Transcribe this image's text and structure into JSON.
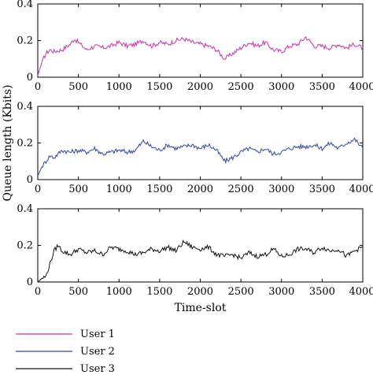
{
  "chart_data": [
    {
      "type": "line",
      "series": [
        {
          "name": "User 1",
          "color": "#cc33aa",
          "x": [
            0,
            50,
            100,
            150,
            200,
            300,
            400,
            450,
            500,
            600,
            700,
            800,
            900,
            1000,
            1100,
            1200,
            1300,
            1400,
            1500,
            1600,
            1700,
            1800,
            1900,
            2000,
            2100,
            2200,
            2300,
            2400,
            2500,
            2600,
            2700,
            2800,
            2900,
            3000,
            3100,
            3200,
            3300,
            3400,
            3500,
            3600,
            3700,
            3800,
            3900,
            4000
          ],
          "y": [
            0.01,
            0.08,
            0.13,
            0.15,
            0.14,
            0.15,
            0.18,
            0.21,
            0.19,
            0.15,
            0.17,
            0.16,
            0.17,
            0.19,
            0.17,
            0.18,
            0.2,
            0.17,
            0.19,
            0.18,
            0.2,
            0.21,
            0.19,
            0.18,
            0.17,
            0.15,
            0.1,
            0.13,
            0.16,
            0.19,
            0.17,
            0.19,
            0.15,
            0.14,
            0.17,
            0.18,
            0.22,
            0.17,
            0.17,
            0.16,
            0.18,
            0.16,
            0.18,
            0.16
          ]
        }
      ],
      "xlim": [
        0,
        4000
      ],
      "ylim": [
        0,
        0.4
      ],
      "xticks": [
        "0",
        "500",
        "1000",
        "1500",
        "2000",
        "2500",
        "3000",
        "3500",
        "4000"
      ],
      "yticks": [
        "0",
        "0.2",
        "0.4"
      ]
    },
    {
      "type": "line",
      "series": [
        {
          "name": "User 2",
          "color": "#3344aa",
          "x": [
            0,
            50,
            100,
            150,
            200,
            300,
            400,
            500,
            600,
            700,
            800,
            900,
            1000,
            1100,
            1200,
            1300,
            1400,
            1500,
            1600,
            1700,
            1800,
            1900,
            2000,
            2100,
            2200,
            2300,
            2400,
            2500,
            2600,
            2700,
            2800,
            2900,
            3000,
            3100,
            3200,
            3300,
            3400,
            3500,
            3600,
            3700,
            3800,
            3900,
            4000
          ],
          "y": [
            0.02,
            0.07,
            0.1,
            0.13,
            0.12,
            0.16,
            0.15,
            0.16,
            0.15,
            0.17,
            0.14,
            0.15,
            0.16,
            0.15,
            0.16,
            0.21,
            0.18,
            0.16,
            0.19,
            0.17,
            0.18,
            0.19,
            0.17,
            0.19,
            0.16,
            0.1,
            0.12,
            0.15,
            0.17,
            0.15,
            0.17,
            0.14,
            0.15,
            0.17,
            0.18,
            0.18,
            0.19,
            0.17,
            0.2,
            0.17,
            0.2,
            0.22,
            0.17
          ]
        }
      ],
      "xlim": [
        0,
        4000
      ],
      "ylim": [
        0,
        0.4
      ],
      "xticks": [
        "0",
        "500",
        "1000",
        "1500",
        "2000",
        "2500",
        "3000",
        "3500",
        "4000"
      ],
      "yticks": [
        "0",
        "0.2",
        "0.4"
      ],
      "ylabel": "Queue length (Kbits)"
    },
    {
      "type": "line",
      "series": [
        {
          "name": "User 3",
          "color": "#111111",
          "x": [
            0,
            50,
            100,
            150,
            200,
            250,
            300,
            400,
            500,
            600,
            700,
            800,
            900,
            1000,
            1100,
            1200,
            1300,
            1400,
            1500,
            1600,
            1700,
            1800,
            1900,
            2000,
            2100,
            2200,
            2300,
            2400,
            2500,
            2600,
            2700,
            2800,
            2900,
            3000,
            3100,
            3200,
            3300,
            3400,
            3500,
            3600,
            3700,
            3800,
            3900,
            4000
          ],
          "y": [
            0.0,
            0.02,
            0.03,
            0.1,
            0.17,
            0.2,
            0.17,
            0.15,
            0.18,
            0.16,
            0.17,
            0.15,
            0.19,
            0.18,
            0.17,
            0.15,
            0.16,
            0.18,
            0.17,
            0.19,
            0.17,
            0.22,
            0.19,
            0.18,
            0.19,
            0.15,
            0.14,
            0.15,
            0.13,
            0.16,
            0.14,
            0.15,
            0.18,
            0.14,
            0.15,
            0.18,
            0.18,
            0.16,
            0.19,
            0.17,
            0.18,
            0.14,
            0.17,
            0.19
          ]
        }
      ],
      "xlim": [
        0,
        4000
      ],
      "ylim": [
        0,
        0.4
      ],
      "xticks": [
        "0",
        "500",
        "1000",
        "1500",
        "2000",
        "2500",
        "3000",
        "3500",
        "4000"
      ],
      "yticks": [
        "0",
        "0.2",
        "0.4"
      ],
      "xlabel": "Time-slot"
    }
  ],
  "legend": {
    "placement": "bottom-left",
    "entries": [
      {
        "label": "User 1",
        "color": "#cc33aa"
      },
      {
        "label": "User 2",
        "color": "#3344aa"
      },
      {
        "label": "User 3",
        "color": "#111111"
      }
    ]
  }
}
